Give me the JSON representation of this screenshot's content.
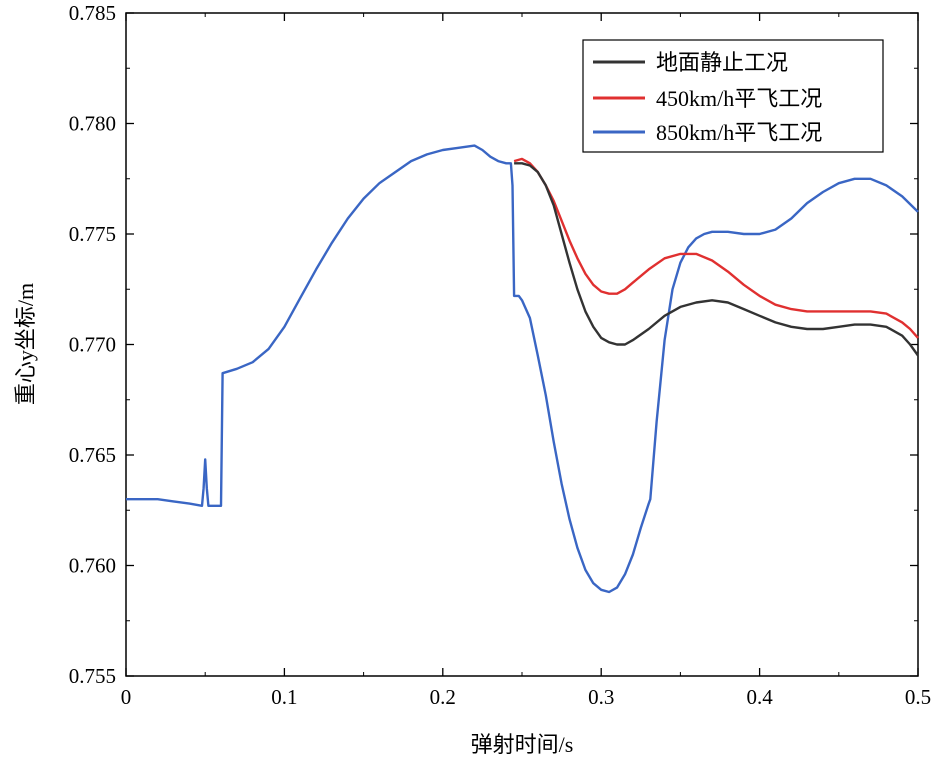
{
  "chart_data": {
    "type": "line",
    "xlabel": "弹射时间/s",
    "ylabel": "重心y坐标/m",
    "xlim": [
      0,
      0.5
    ],
    "ylim": [
      0.755,
      0.785
    ],
    "x_ticks": [
      "0",
      "0.1",
      "0.2",
      "0.3",
      "0.4",
      "0.5"
    ],
    "y_ticks": [
      "0.755",
      "0.760",
      "0.765",
      "0.770",
      "0.775",
      "0.780",
      "0.785"
    ],
    "grid": false,
    "legend_position": "top-right",
    "series": [
      {
        "name": "地面静止工况",
        "color": "#333333",
        "points": [
          [
            0.245,
            0.7782
          ],
          [
            0.25,
            0.7782
          ],
          [
            0.255,
            0.7781
          ],
          [
            0.26,
            0.7778
          ],
          [
            0.265,
            0.7772
          ],
          [
            0.27,
            0.7763
          ],
          [
            0.275,
            0.775
          ],
          [
            0.28,
            0.7737
          ],
          [
            0.285,
            0.7725
          ],
          [
            0.29,
            0.7715
          ],
          [
            0.295,
            0.7708
          ],
          [
            0.3,
            0.7703
          ],
          [
            0.305,
            0.7701
          ],
          [
            0.31,
            0.77
          ],
          [
            0.315,
            0.77
          ],
          [
            0.32,
            0.7702
          ],
          [
            0.33,
            0.7707
          ],
          [
            0.34,
            0.7713
          ],
          [
            0.35,
            0.7717
          ],
          [
            0.36,
            0.7719
          ],
          [
            0.37,
            0.772
          ],
          [
            0.38,
            0.7719
          ],
          [
            0.39,
            0.7716
          ],
          [
            0.4,
            0.7713
          ],
          [
            0.41,
            0.771
          ],
          [
            0.42,
            0.7708
          ],
          [
            0.43,
            0.7707
          ],
          [
            0.44,
            0.7707
          ],
          [
            0.45,
            0.7708
          ],
          [
            0.46,
            0.7709
          ],
          [
            0.47,
            0.7709
          ],
          [
            0.48,
            0.7708
          ],
          [
            0.49,
            0.7704
          ],
          [
            0.495,
            0.77
          ],
          [
            0.5,
            0.7695
          ]
        ]
      },
      {
        "name": "450km/h平飞工况",
        "color": "#e03030",
        "points": [
          [
            0.245,
            0.7783
          ],
          [
            0.25,
            0.7784
          ],
          [
            0.255,
            0.7782
          ],
          [
            0.26,
            0.7778
          ],
          [
            0.265,
            0.7772
          ],
          [
            0.27,
            0.7765
          ],
          [
            0.275,
            0.7756
          ],
          [
            0.28,
            0.7747
          ],
          [
            0.285,
            0.7739
          ],
          [
            0.29,
            0.7732
          ],
          [
            0.295,
            0.7727
          ],
          [
            0.3,
            0.7724
          ],
          [
            0.305,
            0.7723
          ],
          [
            0.31,
            0.7723
          ],
          [
            0.315,
            0.7725
          ],
          [
            0.32,
            0.7728
          ],
          [
            0.33,
            0.7734
          ],
          [
            0.34,
            0.7739
          ],
          [
            0.35,
            0.7741
          ],
          [
            0.36,
            0.7741
          ],
          [
            0.37,
            0.7738
          ],
          [
            0.38,
            0.7733
          ],
          [
            0.39,
            0.7727
          ],
          [
            0.4,
            0.7722
          ],
          [
            0.41,
            0.7718
          ],
          [
            0.42,
            0.7716
          ],
          [
            0.43,
            0.7715
          ],
          [
            0.44,
            0.7715
          ],
          [
            0.45,
            0.7715
          ],
          [
            0.46,
            0.7715
          ],
          [
            0.47,
            0.7715
          ],
          [
            0.48,
            0.7714
          ],
          [
            0.49,
            0.771
          ],
          [
            0.495,
            0.7707
          ],
          [
            0.5,
            0.7703
          ]
        ]
      },
      {
        "name": "850km/h平飞工况",
        "color": "#3a66c4",
        "points": [
          [
            0,
            0.763
          ],
          [
            0.01,
            0.763
          ],
          [
            0.02,
            0.763
          ],
          [
            0.03,
            0.7629
          ],
          [
            0.04,
            0.7628
          ],
          [
            0.048,
            0.7627
          ],
          [
            0.049,
            0.7635
          ],
          [
            0.05,
            0.7648
          ],
          [
            0.051,
            0.7635
          ],
          [
            0.052,
            0.7627
          ],
          [
            0.06,
            0.7627
          ],
          [
            0.061,
            0.7687
          ],
          [
            0.07,
            0.7689
          ],
          [
            0.08,
            0.7692
          ],
          [
            0.09,
            0.7698
          ],
          [
            0.1,
            0.7708
          ],
          [
            0.11,
            0.7721
          ],
          [
            0.12,
            0.7734
          ],
          [
            0.13,
            0.7746
          ],
          [
            0.14,
            0.7757
          ],
          [
            0.15,
            0.7766
          ],
          [
            0.16,
            0.7773
          ],
          [
            0.17,
            0.7778
          ],
          [
            0.18,
            0.7783
          ],
          [
            0.19,
            0.7786
          ],
          [
            0.2,
            0.7788
          ],
          [
            0.21,
            0.7789
          ],
          [
            0.22,
            0.779
          ],
          [
            0.225,
            0.7788
          ],
          [
            0.23,
            0.7785
          ],
          [
            0.235,
            0.7783
          ],
          [
            0.24,
            0.7782
          ],
          [
            0.243,
            0.7782
          ],
          [
            0.244,
            0.7772
          ],
          [
            0.245,
            0.7722
          ],
          [
            0.248,
            0.7722
          ],
          [
            0.25,
            0.772
          ],
          [
            0.255,
            0.7712
          ],
          [
            0.26,
            0.7695
          ],
          [
            0.265,
            0.7677
          ],
          [
            0.27,
            0.7656
          ],
          [
            0.275,
            0.7637
          ],
          [
            0.28,
            0.7621
          ],
          [
            0.285,
            0.7608
          ],
          [
            0.29,
            0.7598
          ],
          [
            0.295,
            0.7592
          ],
          [
            0.3,
            0.7589
          ],
          [
            0.305,
            0.7588
          ],
          [
            0.31,
            0.759
          ],
          [
            0.315,
            0.7596
          ],
          [
            0.32,
            0.7605
          ],
          [
            0.325,
            0.7617
          ],
          [
            0.33,
            0.7628
          ],
          [
            0.331,
            0.763
          ],
          [
            0.335,
            0.7665
          ],
          [
            0.34,
            0.7702
          ],
          [
            0.345,
            0.7725
          ],
          [
            0.35,
            0.7737
          ],
          [
            0.355,
            0.7744
          ],
          [
            0.36,
            0.7748
          ],
          [
            0.365,
            0.775
          ],
          [
            0.37,
            0.7751
          ],
          [
            0.38,
            0.7751
          ],
          [
            0.39,
            0.775
          ],
          [
            0.4,
            0.775
          ],
          [
            0.41,
            0.7752
          ],
          [
            0.42,
            0.7757
          ],
          [
            0.43,
            0.7764
          ],
          [
            0.44,
            0.7769
          ],
          [
            0.45,
            0.7773
          ],
          [
            0.46,
            0.7775
          ],
          [
            0.47,
            0.7775
          ],
          [
            0.48,
            0.7772
          ],
          [
            0.49,
            0.7767
          ],
          [
            0.5,
            0.776
          ]
        ]
      }
    ]
  }
}
